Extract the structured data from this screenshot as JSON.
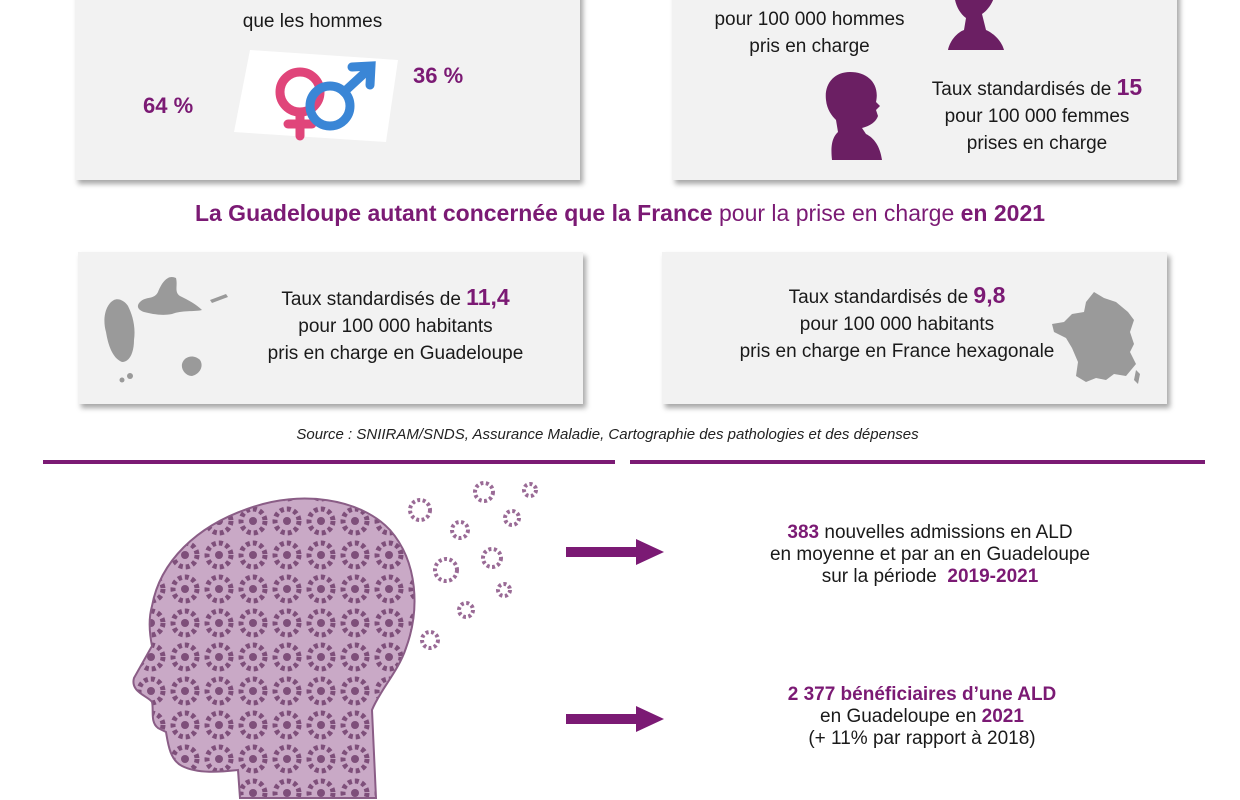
{
  "gender_card": {
    "line_partial": "que les hommes",
    "pct_left": "64 %",
    "pct_right": "36 %"
  },
  "rates_card": {
    "men_line1": "pour 100 000 hommes",
    "men_line2": "pris en charge",
    "women_prefix": "Taux standardisés de ",
    "women_value": "15",
    "women_line2": "pour 100 000 femmes",
    "women_line3": "prises en charge"
  },
  "headline": {
    "part1": "La Guadeloupe autant concernée que la France",
    "part2": " pour la prise en charge ",
    "part3": "en 2021"
  },
  "guadeloupe_card": {
    "prefix": "Taux standardisés de ",
    "value": "11,4",
    "line2": "pour 100 000 habitants",
    "line3": "pris en charge en Guadeloupe"
  },
  "france_card": {
    "prefix": "Taux standardisés de ",
    "value": "9,8",
    "line2": "pour 100 000 habitants",
    "line3": "pris en charge en France hexagonale"
  },
  "source": "Source : SNIIRAM/SNDS, Assurance Maladie, Cartographie des pathologies et des dépenses",
  "info1": {
    "value": "383",
    "line1_rest": " nouvelles admissions en ALD",
    "line2": "en moyenne et par an en Guadeloupe",
    "line3_prefix": "sur la période ",
    "period": "2019-2021"
  },
  "info2": {
    "line1": "2 377 bénéficiaires d’une ALD",
    "line2_prefix": "en Guadeloupe en ",
    "year": "2021",
    "line3": "(+ 11% par rapport à 2018)"
  },
  "colors": {
    "accent": "#7b1a74",
    "card": "#f2f2f2",
    "female_symbol": "#e0457a",
    "male_symbol": "#3a86d6"
  }
}
